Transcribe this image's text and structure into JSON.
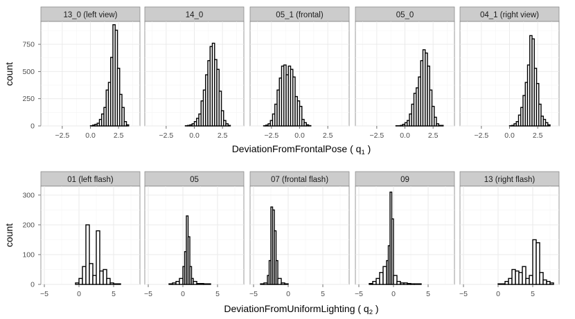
{
  "chart_data": [
    {
      "type": "bar",
      "facet_type": "histogram",
      "ylabel": "count",
      "xlabel_text": "DeviationFromFrontalPose ( q",
      "xlabel_sub": "1",
      "xlabel_close": " )",
      "ylim": [
        0,
        960
      ],
      "yticks": [
        0,
        250,
        500,
        750
      ],
      "xlim": [
        -4.4,
        4.4
      ],
      "xticks": [
        -2.5,
        0.0,
        2.5
      ],
      "xtick_labels": [
        "−2.5",
        "0.0",
        "2.5"
      ],
      "grid": true,
      "panels": [
        {
          "title": "13_0 (left view)",
          "bars": [
            [
              -4,
              0
            ],
            [
              -3.6,
              0
            ],
            [
              -3.2,
              0
            ],
            [
              -2.8,
              0
            ],
            [
              -2.4,
              0
            ],
            [
              -2,
              0
            ],
            [
              -1.6,
              0
            ],
            [
              -1.2,
              0
            ],
            [
              -0.8,
              0
            ],
            [
              -0.4,
              0
            ],
            [
              0,
              2
            ],
            [
              0.2,
              8
            ],
            [
              0.4,
              15
            ],
            [
              0.6,
              25
            ],
            [
              0.8,
              60
            ],
            [
              1,
              110
            ],
            [
              1.2,
              170
            ],
            [
              1.4,
              330
            ],
            [
              1.6,
              400
            ],
            [
              1.8,
              630
            ],
            [
              2,
              930
            ],
            [
              2.2,
              880
            ],
            [
              2.4,
              530
            ],
            [
              2.6,
              290
            ],
            [
              2.8,
              170
            ],
            [
              3,
              40
            ],
            [
              3.2,
              10
            ],
            [
              3.4,
              0
            ],
            [
              3.6,
              0
            ],
            [
              3.8,
              0
            ],
            [
              4,
              0
            ]
          ]
        },
        {
          "title": "14_0",
          "bars": [
            [
              -4,
              0
            ],
            [
              -3.6,
              0
            ],
            [
              -3.2,
              0
            ],
            [
              -2.8,
              0
            ],
            [
              -2.4,
              0
            ],
            [
              -2,
              0
            ],
            [
              -1.6,
              0
            ],
            [
              -1.2,
              0
            ],
            [
              -0.8,
              2
            ],
            [
              -0.6,
              5
            ],
            [
              -0.4,
              10
            ],
            [
              -0.2,
              20
            ],
            [
              0,
              40
            ],
            [
              0.2,
              70
            ],
            [
              0.4,
              110
            ],
            [
              0.6,
              230
            ],
            [
              0.8,
              330
            ],
            [
              1,
              470
            ],
            [
              1.2,
              600
            ],
            [
              1.4,
              730
            ],
            [
              1.6,
              760
            ],
            [
              1.8,
              610
            ],
            [
              2,
              520
            ],
            [
              2.2,
              320
            ],
            [
              2.4,
              140
            ],
            [
              2.6,
              50
            ],
            [
              2.8,
              20
            ],
            [
              3,
              5
            ],
            [
              3.2,
              0
            ],
            [
              3.6,
              0
            ],
            [
              4,
              0
            ]
          ]
        },
        {
          "title": "05_1 (frontal)",
          "bars": [
            [
              -4,
              0
            ],
            [
              -3.6,
              0
            ],
            [
              -3.2,
              2
            ],
            [
              -3,
              8
            ],
            [
              -2.8,
              20
            ],
            [
              -2.6,
              50
            ],
            [
              -2.4,
              110
            ],
            [
              -2.2,
              200
            ],
            [
              -2,
              330
            ],
            [
              -1.8,
              440
            ],
            [
              -1.6,
              550
            ],
            [
              -1.4,
              560
            ],
            [
              -1.2,
              470
            ],
            [
              -1,
              550
            ],
            [
              -0.8,
              520
            ],
            [
              -0.6,
              450
            ],
            [
              -0.4,
              270
            ],
            [
              -0.2,
              230
            ],
            [
              0,
              180
            ],
            [
              0.2,
              60
            ],
            [
              0.4,
              30
            ],
            [
              0.6,
              10
            ],
            [
              0.8,
              3
            ],
            [
              1,
              0
            ],
            [
              1.4,
              0
            ],
            [
              2,
              0
            ],
            [
              2.6,
              0
            ],
            [
              3.2,
              0
            ],
            [
              3.8,
              0
            ],
            [
              4,
              0
            ]
          ]
        },
        {
          "title": "05_0",
          "bars": [
            [
              -4,
              0
            ],
            [
              -3.6,
              0
            ],
            [
              -3.2,
              0
            ],
            [
              -2.8,
              0
            ],
            [
              -2.4,
              0
            ],
            [
              -2,
              0
            ],
            [
              -1.6,
              0
            ],
            [
              -1.2,
              0
            ],
            [
              -0.8,
              2
            ],
            [
              -0.4,
              5
            ],
            [
              -0.2,
              15
            ],
            [
              0,
              30
            ],
            [
              0.2,
              50
            ],
            [
              0.4,
              110
            ],
            [
              0.6,
              200
            ],
            [
              0.8,
              300
            ],
            [
              1,
              350
            ],
            [
              1.2,
              450
            ],
            [
              1.4,
              600
            ],
            [
              1.6,
              700
            ],
            [
              1.8,
              670
            ],
            [
              2,
              550
            ],
            [
              2.2,
              330
            ],
            [
              2.4,
              180
            ],
            [
              2.6,
              80
            ],
            [
              2.8,
              20
            ],
            [
              3,
              5
            ],
            [
              3.4,
              0
            ],
            [
              3.8,
              0
            ],
            [
              4,
              0
            ]
          ]
        },
        {
          "title": "04_1 (right view)",
          "bars": [
            [
              -4,
              0
            ],
            [
              -3.6,
              0
            ],
            [
              -3.2,
              0
            ],
            [
              -2.8,
              0
            ],
            [
              -2.4,
              0
            ],
            [
              -2,
              0
            ],
            [
              -1.6,
              0
            ],
            [
              -1.2,
              0
            ],
            [
              -0.8,
              0
            ],
            [
              -0.4,
              0
            ],
            [
              0,
              2
            ],
            [
              0.2,
              5
            ],
            [
              0.4,
              20
            ],
            [
              0.6,
              40
            ],
            [
              0.8,
              100
            ],
            [
              1,
              170
            ],
            [
              1.2,
              280
            ],
            [
              1.4,
              400
            ],
            [
              1.6,
              560
            ],
            [
              1.8,
              830
            ],
            [
              2,
              800
            ],
            [
              2.2,
              530
            ],
            [
              2.4,
              390
            ],
            [
              2.6,
              200
            ],
            [
              2.8,
              90
            ],
            [
              3,
              60
            ],
            [
              3.2,
              30
            ],
            [
              3.4,
              10
            ],
            [
              3.6,
              0
            ],
            [
              4,
              0
            ]
          ]
        }
      ]
    },
    {
      "type": "bar",
      "facet_type": "histogram",
      "ylabel": "count",
      "xlabel_text": "DeviationFromUniformLighting ( q",
      "xlabel_sub": "2",
      "xlabel_close": " )",
      "ylim": [
        0,
        330
      ],
      "yticks": [
        0,
        100,
        200,
        300
      ],
      "xlim": [
        -5.5,
        8.8
      ],
      "xticks": [
        -5,
        0,
        5
      ],
      "xtick_labels": [
        "−5",
        "0",
        "5"
      ],
      "grid": true,
      "panels": [
        {
          "title": "01 (left flash)",
          "bars": [
            [
              -5,
              0
            ],
            [
              -4,
              0
            ],
            [
              -3,
              0
            ],
            [
              -2,
              0
            ],
            [
              -1,
              0
            ],
            [
              -0.5,
              5
            ],
            [
              0,
              20
            ],
            [
              0.5,
              60
            ],
            [
              1,
              200
            ],
            [
              1.5,
              70
            ],
            [
              2,
              30
            ],
            [
              2.5,
              180
            ],
            [
              3,
              45
            ],
            [
              3.5,
              50
            ],
            [
              4,
              20
            ],
            [
              4.5,
              5
            ],
            [
              5,
              2
            ],
            [
              6,
              0
            ],
            [
              7,
              0
            ],
            [
              8,
              0
            ]
          ]
        },
        {
          "title": "05",
          "bars": [
            [
              -5,
              0
            ],
            [
              -4,
              0
            ],
            [
              -3,
              0
            ],
            [
              -2,
              2
            ],
            [
              -1.5,
              5
            ],
            [
              -1,
              10
            ],
            [
              -0.5,
              20
            ],
            [
              0,
              60
            ],
            [
              0.25,
              110
            ],
            [
              0.5,
              230
            ],
            [
              0.75,
              160
            ],
            [
              1,
              60
            ],
            [
              1.25,
              20
            ],
            [
              1.5,
              10
            ],
            [
              2,
              3
            ],
            [
              3,
              2
            ],
            [
              4,
              0
            ],
            [
              5,
              0
            ],
            [
              6,
              0
            ],
            [
              7,
              0
            ],
            [
              8,
              0
            ]
          ]
        },
        {
          "title": "07 (frontal flash)",
          "bars": [
            [
              -5,
              0
            ],
            [
              -4,
              2
            ],
            [
              -3.5,
              5
            ],
            [
              -3,
              30
            ],
            [
              -2.75,
              80
            ],
            [
              -2.5,
              260
            ],
            [
              -2.25,
              250
            ],
            [
              -2,
              180
            ],
            [
              -1.75,
              80
            ],
            [
              -1.5,
              20
            ],
            [
              -1,
              5
            ],
            [
              -0.5,
              2
            ],
            [
              0,
              0
            ],
            [
              1,
              0
            ],
            [
              2,
              0
            ],
            [
              3,
              0
            ],
            [
              4,
              0
            ],
            [
              5,
              0
            ],
            [
              6,
              0
            ],
            [
              7,
              0
            ],
            [
              8,
              0
            ]
          ]
        },
        {
          "title": "09",
          "bars": [
            [
              -5,
              0
            ],
            [
              -4,
              0
            ],
            [
              -3.5,
              3
            ],
            [
              -3,
              10
            ],
            [
              -2.5,
              20
            ],
            [
              -2,
              40
            ],
            [
              -1.5,
              60
            ],
            [
              -1,
              80
            ],
            [
              -0.75,
              130
            ],
            [
              -0.5,
              310
            ],
            [
              -0.25,
              220
            ],
            [
              0,
              30
            ],
            [
              0.5,
              10
            ],
            [
              1,
              5
            ],
            [
              1.5,
              5
            ],
            [
              2,
              3
            ],
            [
              2.5,
              2
            ],
            [
              3,
              2
            ],
            [
              4,
              0
            ],
            [
              5,
              0
            ],
            [
              6,
              0
            ],
            [
              7,
              0
            ],
            [
              8,
              0
            ]
          ]
        },
        {
          "title": "13 (right flash)",
          "bars": [
            [
              -5,
              0
            ],
            [
              -4,
              0
            ],
            [
              -3,
              0
            ],
            [
              -2,
              0
            ],
            [
              -1,
              0
            ],
            [
              0,
              2
            ],
            [
              1,
              10
            ],
            [
              1.5,
              20
            ],
            [
              2,
              50
            ],
            [
              2.5,
              45
            ],
            [
              3,
              40
            ],
            [
              3.5,
              60
            ],
            [
              4,
              20
            ],
            [
              4.5,
              30
            ],
            [
              5,
              150
            ],
            [
              5.5,
              140
            ],
            [
              6,
              40
            ],
            [
              6.5,
              15
            ],
            [
              7,
              10
            ],
            [
              7.5,
              5
            ],
            [
              8,
              0
            ]
          ]
        }
      ]
    }
  ]
}
